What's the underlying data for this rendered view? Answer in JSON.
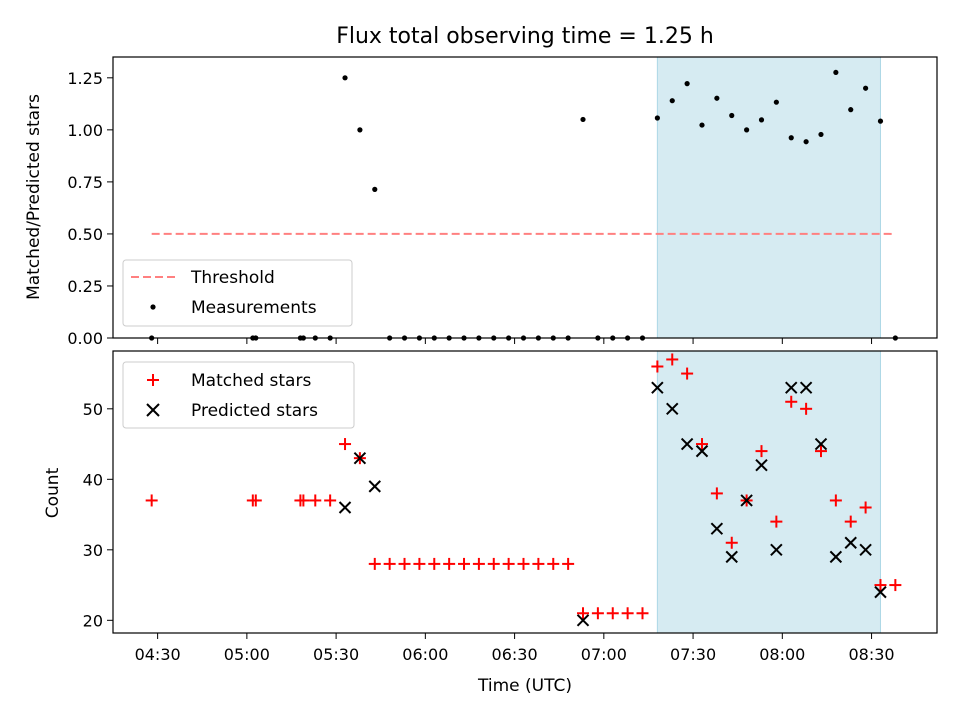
{
  "chart_data": [
    {
      "type": "scatter",
      "title": "Flux total observing time = 1.25 h",
      "xlabel": "",
      "ylabel": "Matched/Predicted stars",
      "ylim": [
        0.0,
        1.35
      ],
      "yticks": [
        0.0,
        0.25,
        0.5,
        0.75,
        1.0,
        1.25
      ],
      "ytick_labels": [
        "0.00",
        "0.25",
        "0.50",
        "0.75",
        "1.00",
        "1.25"
      ],
      "x_tick_labels_shown": false,
      "shaded_interval": {
        "start": "07:18",
        "end": "08:33",
        "color": "#add8e6"
      },
      "threshold": {
        "name": "Threshold",
        "value": 0.5,
        "x_start": "04:28",
        "x_end": "08:38",
        "color": "#ff8080",
        "style": "dashed"
      },
      "series": [
        {
          "name": "Measurements",
          "color": "#000000",
          "points": [
            [
              "04:28",
              0.0
            ],
            [
              "05:02",
              0.0
            ],
            [
              "05:03",
              0.0
            ],
            [
              "05:18",
              0.0
            ],
            [
              "05:19",
              0.0
            ],
            [
              "05:23",
              0.0
            ],
            [
              "05:28",
              0.0
            ],
            [
              "05:33",
              1.25
            ],
            [
              "05:38",
              1.0
            ],
            [
              "05:43",
              0.714
            ],
            [
              "05:48",
              0.0
            ],
            [
              "05:53",
              0.0
            ],
            [
              "05:58",
              0.0
            ],
            [
              "06:03",
              0.0
            ],
            [
              "06:08",
              0.0
            ],
            [
              "06:13",
              0.0
            ],
            [
              "06:18",
              0.0
            ],
            [
              "06:23",
              0.0
            ],
            [
              "06:28",
              0.0
            ],
            [
              "06:33",
              0.0
            ],
            [
              "06:38",
              0.0
            ],
            [
              "06:43",
              0.0
            ],
            [
              "06:48",
              0.0
            ],
            [
              "06:53",
              1.05
            ],
            [
              "06:58",
              0.0
            ],
            [
              "07:03",
              0.0
            ],
            [
              "07:08",
              0.0
            ],
            [
              "07:13",
              0.0
            ],
            [
              "07:18",
              1.057
            ],
            [
              "07:23",
              1.14
            ],
            [
              "07:28",
              1.222
            ],
            [
              "07:33",
              1.023
            ],
            [
              "07:38",
              1.152
            ],
            [
              "07:43",
              1.069
            ],
            [
              "07:48",
              1.0
            ],
            [
              "07:53",
              1.048
            ],
            [
              "07:58",
              1.133
            ],
            [
              "08:03",
              0.962
            ],
            [
              "08:08",
              0.943
            ],
            [
              "08:13",
              0.978
            ],
            [
              "08:18",
              1.276
            ],
            [
              "08:23",
              1.097
            ],
            [
              "08:28",
              1.2
            ],
            [
              "08:33",
              1.042
            ],
            [
              "08:38",
              0.0
            ]
          ]
        }
      ],
      "legend": {
        "location": "lower-left",
        "entries": [
          "Threshold",
          "Measurements"
        ]
      }
    },
    {
      "type": "scatter",
      "title": "",
      "xlabel": "Time (UTC)",
      "ylabel": "Count",
      "ylim": [
        18.2,
        58.2
      ],
      "yticks": [
        20,
        30,
        40,
        50
      ],
      "ytick_labels": [
        "20",
        "30",
        "40",
        "50"
      ],
      "x_ticks": [
        "04:30",
        "05:00",
        "05:30",
        "06:00",
        "06:30",
        "07:00",
        "07:30",
        "08:00",
        "08:30"
      ],
      "xlim": [
        "04:15",
        "08:52"
      ],
      "shaded_interval": {
        "start": "07:18",
        "end": "08:33",
        "color": "#add8e6"
      },
      "series": [
        {
          "name": "Matched stars",
          "marker": "+",
          "color": "#ff0000",
          "points": [
            [
              "04:28",
              37
            ],
            [
              "05:02",
              37
            ],
            [
              "05:03",
              37
            ],
            [
              "05:18",
              37
            ],
            [
              "05:19",
              37
            ],
            [
              "05:23",
              37
            ],
            [
              "05:28",
              37
            ],
            [
              "05:33",
              45
            ],
            [
              "05:38",
              43
            ],
            [
              "05:43",
              28
            ],
            [
              "05:48",
              28
            ],
            [
              "05:53",
              28
            ],
            [
              "05:58",
              28
            ],
            [
              "06:03",
              28
            ],
            [
              "06:08",
              28
            ],
            [
              "06:13",
              28
            ],
            [
              "06:18",
              28
            ],
            [
              "06:23",
              28
            ],
            [
              "06:28",
              28
            ],
            [
              "06:33",
              28
            ],
            [
              "06:38",
              28
            ],
            [
              "06:43",
              28
            ],
            [
              "06:48",
              28
            ],
            [
              "06:53",
              21
            ],
            [
              "06:58",
              21
            ],
            [
              "07:03",
              21
            ],
            [
              "07:08",
              21
            ],
            [
              "07:13",
              21
            ],
            [
              "07:18",
              56
            ],
            [
              "07:23",
              57
            ],
            [
              "07:28",
              55
            ],
            [
              "07:33",
              45
            ],
            [
              "07:38",
              38
            ],
            [
              "07:43",
              31
            ],
            [
              "07:48",
              37
            ],
            [
              "07:53",
              44
            ],
            [
              "07:58",
              34
            ],
            [
              "08:03",
              51
            ],
            [
              "08:08",
              50
            ],
            [
              "08:13",
              44
            ],
            [
              "08:18",
              37
            ],
            [
              "08:23",
              34
            ],
            [
              "08:28",
              36
            ],
            [
              "08:33",
              25
            ],
            [
              "08:38",
              25
            ]
          ]
        },
        {
          "name": "Predicted stars",
          "marker": "x",
          "color": "#000000",
          "points": [
            [
              "05:33",
              36
            ],
            [
              "05:38",
              43
            ],
            [
              "05:43",
              39
            ],
            [
              "06:53",
              20
            ],
            [
              "07:18",
              53
            ],
            [
              "07:23",
              50
            ],
            [
              "07:28",
              45
            ],
            [
              "07:33",
              44
            ],
            [
              "07:38",
              33
            ],
            [
              "07:43",
              29
            ],
            [
              "07:48",
              37
            ],
            [
              "07:53",
              42
            ],
            [
              "07:58",
              30
            ],
            [
              "08:03",
              53
            ],
            [
              "08:08",
              53
            ],
            [
              "08:13",
              45
            ],
            [
              "08:18",
              29
            ],
            [
              "08:23",
              31
            ],
            [
              "08:28",
              30
            ],
            [
              "08:33",
              24
            ]
          ]
        }
      ],
      "legend": {
        "location": "upper-left",
        "entries": [
          "Matched stars",
          "Predicted stars"
        ]
      }
    }
  ]
}
